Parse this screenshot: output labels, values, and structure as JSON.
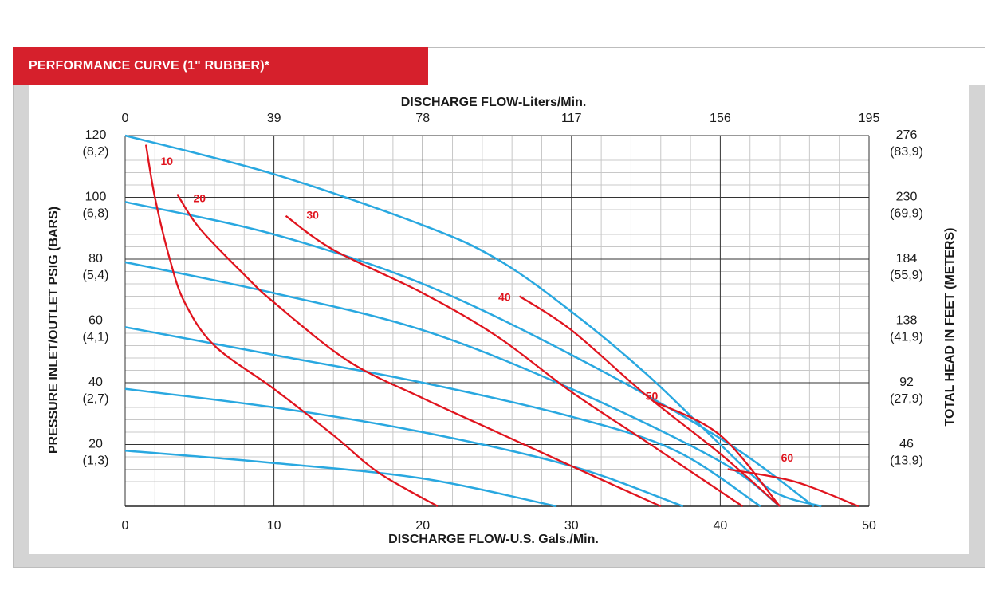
{
  "header": {
    "title": "PERFORMANCE CURVE  (1\" RUBBER)*"
  },
  "chart_data": {
    "type": "line",
    "x_bottom": {
      "label": "DISCHARGE FLOW-U.S. Gals./Min.",
      "range": [
        0,
        50
      ],
      "ticks": [
        "0",
        "10",
        "20",
        "30",
        "40",
        "50"
      ]
    },
    "x_top": {
      "label": "DISCHARGE FLOW-Liters/Min.",
      "ticks": [
        "0",
        "39",
        "78",
        "117",
        "156",
        "195"
      ]
    },
    "y_left": {
      "label": "PRESSURE INLET/OUTLET PSIG (BARS)",
      "range": [
        0,
        120
      ],
      "ticks": [
        {
          "v": 120,
          "main": "120",
          "sub": "(8,2)"
        },
        {
          "v": 100,
          "main": "100",
          "sub": "(6,8)"
        },
        {
          "v": 80,
          "main": "80",
          "sub": "(5,4)"
        },
        {
          "v": 60,
          "main": "60",
          "sub": "(4,1)"
        },
        {
          "v": 40,
          "main": "40",
          "sub": "(2,7)"
        },
        {
          "v": 20,
          "main": "20",
          "sub": "(1,3)"
        }
      ]
    },
    "y_right": {
      "label": "TOTAL HEAD IN FEET (METERS)",
      "ticks": [
        {
          "v": 120,
          "main": "276",
          "sub": "(83,9)"
        },
        {
          "v": 100,
          "main": "230",
          "sub": "(69,9)"
        },
        {
          "v": 80,
          "main": "184",
          "sub": "(55,9)"
        },
        {
          "v": 60,
          "main": "138",
          "sub": "(41,9)"
        },
        {
          "v": 40,
          "main": "92",
          "sub": "(27,9)"
        },
        {
          "v": 20,
          "main": "46",
          "sub": "(13,9)"
        }
      ]
    },
    "grid": true,
    "colors": {
      "pressure": "#29a8e0",
      "air": "#e0141e"
    },
    "pressure_curves": [
      {
        "points": [
          [
            0,
            120
          ],
          [
            10,
            107.5
          ],
          [
            20,
            91
          ],
          [
            25,
            80
          ],
          [
            30,
            63
          ],
          [
            35,
            43
          ],
          [
            40,
            20
          ],
          [
            43.5,
            5
          ],
          [
            46.8,
            0
          ]
        ]
      },
      {
        "points": [
          [
            0,
            98.5
          ],
          [
            10,
            88
          ],
          [
            20,
            72
          ],
          [
            30,
            49
          ],
          [
            40,
            22
          ],
          [
            46.3,
            0
          ]
        ]
      },
      {
        "points": [
          [
            0,
            79
          ],
          [
            10,
            69
          ],
          [
            20,
            57
          ],
          [
            30,
            38
          ],
          [
            40,
            14.5
          ],
          [
            44,
            0
          ]
        ]
      },
      {
        "points": [
          [
            0,
            58
          ],
          [
            10,
            49
          ],
          [
            20,
            40
          ],
          [
            30,
            29
          ],
          [
            37,
            18
          ],
          [
            42.7,
            0
          ]
        ]
      },
      {
        "points": [
          [
            0,
            38
          ],
          [
            10,
            32
          ],
          [
            20,
            24
          ],
          [
            30,
            13
          ],
          [
            37.5,
            0
          ]
        ]
      },
      {
        "points": [
          [
            0,
            18
          ],
          [
            10,
            14
          ],
          [
            20,
            9
          ],
          [
            29,
            0
          ]
        ]
      }
    ],
    "air_curves": [
      {
        "label": "10",
        "points": [
          [
            1.4,
            117
          ],
          [
            2,
            100
          ],
          [
            3,
            80
          ],
          [
            4,
            66
          ],
          [
            6,
            52
          ],
          [
            10,
            38
          ],
          [
            14,
            23
          ],
          [
            17,
            11
          ],
          [
            21,
            0
          ]
        ]
      },
      {
        "label": "20",
        "points": [
          [
            3.5,
            101
          ],
          [
            5,
            90
          ],
          [
            8,
            75
          ],
          [
            10,
            66
          ],
          [
            15,
            47
          ],
          [
            20,
            35
          ],
          [
            25,
            24
          ],
          [
            30,
            13
          ],
          [
            36,
            0
          ]
        ]
      },
      {
        "label": "30",
        "points": [
          [
            10.8,
            94
          ],
          [
            14,
            83
          ],
          [
            20,
            69
          ],
          [
            25,
            55
          ],
          [
            30,
            37
          ],
          [
            35,
            21
          ],
          [
            41.5,
            0
          ]
        ]
      },
      {
        "label": "40",
        "points": [
          [
            26.5,
            68
          ],
          [
            30,
            57
          ],
          [
            35,
            36
          ],
          [
            40,
            17
          ],
          [
            44,
            0
          ]
        ]
      },
      {
        "label": "50",
        "points": [
          [
            35.5,
            34
          ],
          [
            40,
            23
          ],
          [
            44,
            0
          ]
        ]
      },
      {
        "label": "60",
        "points": [
          [
            40.5,
            12
          ],
          [
            45,
            8
          ],
          [
            49.3,
            0
          ]
        ]
      }
    ],
    "curve_labels": [
      {
        "text": "10",
        "x": 2.8,
        "y": 110.5
      },
      {
        "text": "20",
        "x": 5,
        "y": 98.5
      },
      {
        "text": "30",
        "x": 12.6,
        "y": 93
      },
      {
        "text": "40",
        "x": 25.5,
        "y": 66.5
      },
      {
        "text": "50",
        "x": 35.4,
        "y": 34.5
      },
      {
        "text": "60",
        "x": 44.5,
        "y": 14.5
      }
    ]
  }
}
